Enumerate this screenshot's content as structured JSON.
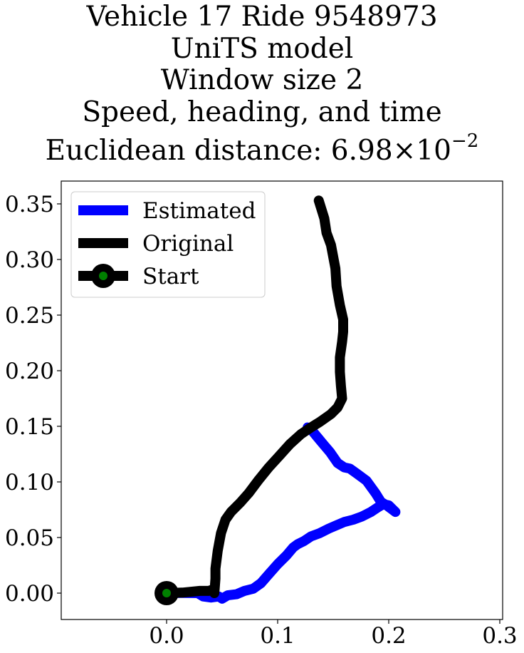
{
  "chart_data": {
    "type": "line",
    "title_lines": [
      "Vehicle 17 Ride 9548973",
      "UniTS model",
      "Window size 2",
      "Speed, heading, and time"
    ],
    "title_distance_label": "Euclidean distance: 6.98",
    "title_distance_times": "×",
    "title_distance_base": "10",
    "title_distance_exp": "−2",
    "xlim": [
      -0.095,
      0.302
    ],
    "ylim": [
      -0.023,
      0.37
    ],
    "x_ticks": [
      0.0,
      0.1,
      0.2,
      0.3
    ],
    "x_tick_labels": [
      "0.0",
      "0.1",
      "0.2",
      "0.3"
    ],
    "y_ticks": [
      0.0,
      0.05,
      0.1,
      0.15,
      0.2,
      0.25,
      0.3,
      0.35
    ],
    "y_tick_labels": [
      "0.00",
      "0.05",
      "0.10",
      "0.15",
      "0.20",
      "0.25",
      "0.30",
      "0.35"
    ],
    "grid": false,
    "legend_position": "top-left",
    "series": [
      {
        "name": "Estimated",
        "color": "#0000ff",
        "points": [
          [
            0.0,
            0.0
          ],
          [
            0.015,
            0.0002
          ],
          [
            0.028,
            0.0
          ],
          [
            0.033,
            -0.003
          ],
          [
            0.04,
            -0.004
          ],
          [
            0.047,
            -0.003
          ],
          [
            0.05,
            -0.005
          ],
          [
            0.055,
            -0.002
          ],
          [
            0.063,
            -0.001
          ],
          [
            0.07,
            0.002
          ],
          [
            0.078,
            0.004
          ],
          [
            0.085,
            0.009
          ],
          [
            0.092,
            0.017
          ],
          [
            0.1,
            0.026
          ],
          [
            0.108,
            0.034
          ],
          [
            0.114,
            0.041
          ],
          [
            0.118,
            0.044
          ],
          [
            0.124,
            0.047
          ],
          [
            0.13,
            0.051
          ],
          [
            0.138,
            0.054
          ],
          [
            0.146,
            0.058
          ],
          [
            0.153,
            0.061
          ],
          [
            0.16,
            0.064
          ],
          [
            0.168,
            0.066
          ],
          [
            0.176,
            0.069
          ],
          [
            0.184,
            0.073
          ],
          [
            0.19,
            0.077
          ],
          [
            0.195,
            0.08
          ],
          [
            0.2,
            0.079
          ],
          [
            0.206,
            0.073
          ],
          [
            0.198,
            0.079
          ],
          [
            0.193,
            0.082
          ],
          [
            0.188,
            0.09
          ],
          [
            0.18,
            0.101
          ],
          [
            0.172,
            0.107
          ],
          [
            0.165,
            0.112
          ],
          [
            0.16,
            0.113
          ],
          [
            0.154,
            0.117
          ],
          [
            0.147,
            0.127
          ],
          [
            0.141,
            0.134
          ],
          [
            0.136,
            0.14
          ],
          [
            0.131,
            0.146
          ],
          [
            0.127,
            0.149
          ]
        ]
      },
      {
        "name": "Original",
        "color": "#000000",
        "points": [
          [
            0.0,
            0.0
          ],
          [
            0.015,
            0.0005
          ],
          [
            0.03,
            0.002
          ],
          [
            0.038,
            0.002
          ],
          [
            0.041,
            0.003
          ],
          [
            0.043,
            0.0
          ],
          [
            0.044,
            0.013
          ],
          [
            0.044,
            0.022
          ],
          [
            0.046,
            0.038
          ],
          [
            0.049,
            0.054
          ],
          [
            0.053,
            0.066
          ],
          [
            0.058,
            0.073
          ],
          [
            0.066,
            0.081
          ],
          [
            0.074,
            0.09
          ],
          [
            0.083,
            0.102
          ],
          [
            0.092,
            0.113
          ],
          [
            0.102,
            0.124
          ],
          [
            0.111,
            0.134
          ],
          [
            0.121,
            0.143
          ],
          [
            0.13,
            0.149
          ],
          [
            0.138,
            0.154
          ],
          [
            0.148,
            0.161
          ],
          [
            0.154,
            0.167
          ],
          [
            0.158,
            0.175
          ],
          [
            0.157,
            0.186
          ],
          [
            0.156,
            0.199
          ],
          [
            0.156,
            0.212
          ],
          [
            0.158,
            0.226
          ],
          [
            0.159,
            0.235
          ],
          [
            0.159,
            0.246
          ],
          [
            0.156,
            0.259
          ],
          [
            0.153,
            0.276
          ],
          [
            0.152,
            0.292
          ],
          [
            0.148,
            0.313
          ],
          [
            0.144,
            0.324
          ],
          [
            0.142,
            0.337
          ],
          [
            0.137,
            0.353
          ]
        ]
      }
    ],
    "start_marker": {
      "name": "Start",
      "x": 0.0,
      "y": 0.0,
      "outer_color": "#000000",
      "inner_color": "#008000"
    }
  }
}
